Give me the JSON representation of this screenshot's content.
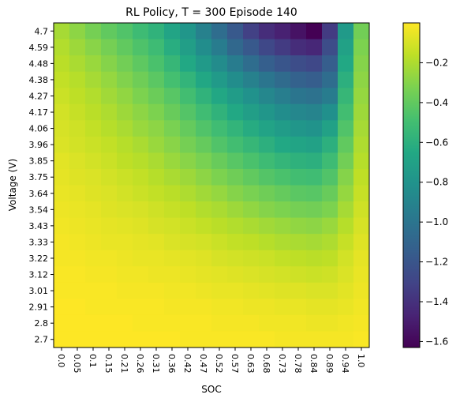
{
  "chart_data": {
    "type": "heatmap",
    "title": "RL Policy, T = 300 Episode 140",
    "xlabel": "SOC",
    "ylabel": "Voltage (V)",
    "x_ticks": [
      "0.0",
      "0.05",
      "0.1",
      "0.15",
      "0.21",
      "0.26",
      "0.31",
      "0.36",
      "0.42",
      "0.47",
      "0.52",
      "0.57",
      "0.63",
      "0.68",
      "0.73",
      "0.78",
      "0.84",
      "0.89",
      "0.94",
      "1.0"
    ],
    "y_ticks": [
      "4.7",
      "4.59",
      "4.48",
      "4.38",
      "4.27",
      "4.17",
      "4.06",
      "3.96",
      "3.85",
      "3.75",
      "3.64",
      "3.54",
      "3.43",
      "3.33",
      "3.22",
      "3.12",
      "3.01",
      "2.91",
      "2.8",
      "2.7"
    ],
    "colorbar": {
      "colormap": "viridis",
      "min": -1.63,
      "max": 0.0,
      "ticks": [
        -1.6,
        -1.4,
        -1.2,
        -1.0,
        -0.8,
        -0.6,
        -0.4,
        -0.2
      ],
      "tick_labels": [
        "−1.6",
        "−1.4",
        "−1.2",
        "−1.0",
        "−0.8",
        "−0.6",
        "−0.4",
        "−0.2"
      ]
    },
    "values": [
      [
        -0.22,
        -0.28,
        -0.34,
        -0.4,
        -0.45,
        -0.52,
        -0.58,
        -0.68,
        -0.78,
        -0.92,
        -1.05,
        -1.18,
        -1.32,
        -1.42,
        -1.48,
        -1.55,
        -1.63,
        -1.35,
        -0.75,
        -0.35
      ],
      [
        -0.19,
        -0.24,
        -0.29,
        -0.34,
        -0.4,
        -0.46,
        -0.52,
        -0.62,
        -0.72,
        -0.84,
        -0.95,
        -1.08,
        -1.18,
        -1.28,
        -1.35,
        -1.42,
        -1.45,
        -1.25,
        -0.7,
        -0.32
      ],
      [
        -0.17,
        -0.21,
        -0.25,
        -0.3,
        -0.35,
        -0.41,
        -0.47,
        -0.55,
        -0.65,
        -0.75,
        -0.85,
        -0.95,
        -1.05,
        -1.14,
        -1.2,
        -1.25,
        -1.28,
        -1.15,
        -0.65,
        -0.3
      ],
      [
        -0.15,
        -0.18,
        -0.22,
        -0.26,
        -0.31,
        -0.36,
        -0.42,
        -0.49,
        -0.57,
        -0.66,
        -0.75,
        -0.84,
        -0.92,
        -1.0,
        -1.06,
        -1.12,
        -1.15,
        -1.05,
        -0.6,
        -0.28
      ],
      [
        -0.13,
        -0.16,
        -0.19,
        -0.23,
        -0.27,
        -0.32,
        -0.37,
        -0.43,
        -0.5,
        -0.58,
        -0.66,
        -0.74,
        -0.81,
        -0.88,
        -0.94,
        -1.0,
        -1.02,
        -0.95,
        -0.55,
        -0.26
      ],
      [
        -0.11,
        -0.14,
        -0.17,
        -0.2,
        -0.24,
        -0.28,
        -0.32,
        -0.38,
        -0.44,
        -0.51,
        -0.58,
        -0.65,
        -0.72,
        -0.78,
        -0.84,
        -0.88,
        -0.9,
        -0.82,
        -0.5,
        -0.24
      ],
      [
        -0.1,
        -0.12,
        -0.15,
        -0.18,
        -0.21,
        -0.25,
        -0.28,
        -0.33,
        -0.39,
        -0.45,
        -0.51,
        -0.57,
        -0.63,
        -0.69,
        -0.74,
        -0.78,
        -0.8,
        -0.7,
        -0.45,
        -0.22
      ],
      [
        -0.09,
        -0.11,
        -0.13,
        -0.15,
        -0.18,
        -0.21,
        -0.25,
        -0.29,
        -0.34,
        -0.39,
        -0.45,
        -0.5,
        -0.55,
        -0.6,
        -0.65,
        -0.68,
        -0.7,
        -0.6,
        -0.4,
        -0.2
      ],
      [
        -0.07,
        -0.09,
        -0.11,
        -0.13,
        -0.16,
        -0.18,
        -0.21,
        -0.25,
        -0.29,
        -0.33,
        -0.38,
        -0.43,
        -0.47,
        -0.52,
        -0.56,
        -0.59,
        -0.6,
        -0.52,
        -0.35,
        -0.18
      ],
      [
        -0.06,
        -0.08,
        -0.09,
        -0.11,
        -0.13,
        -0.15,
        -0.18,
        -0.21,
        -0.24,
        -0.28,
        -0.32,
        -0.36,
        -0.4,
        -0.44,
        -0.47,
        -0.5,
        -0.51,
        -0.45,
        -0.3,
        -0.16
      ],
      [
        -0.05,
        -0.06,
        -0.08,
        -0.09,
        -0.11,
        -0.13,
        -0.15,
        -0.17,
        -0.2,
        -0.23,
        -0.26,
        -0.3,
        -0.33,
        -0.36,
        -0.39,
        -0.42,
        -0.43,
        -0.38,
        -0.26,
        -0.14
      ],
      [
        -0.04,
        -0.05,
        -0.06,
        -0.08,
        -0.09,
        -0.1,
        -0.12,
        -0.14,
        -0.16,
        -0.19,
        -0.21,
        -0.24,
        -0.27,
        -0.3,
        -0.32,
        -0.34,
        -0.35,
        -0.32,
        -0.22,
        -0.12
      ],
      [
        -0.03,
        -0.04,
        -0.05,
        -0.06,
        -0.07,
        -0.08,
        -0.1,
        -0.11,
        -0.13,
        -0.15,
        -0.17,
        -0.19,
        -0.21,
        -0.23,
        -0.25,
        -0.27,
        -0.28,
        -0.25,
        -0.18,
        -0.1
      ],
      [
        -0.02,
        -0.03,
        -0.04,
        -0.05,
        -0.05,
        -0.06,
        -0.07,
        -0.09,
        -0.1,
        -0.11,
        -0.13,
        -0.15,
        -0.16,
        -0.18,
        -0.2,
        -0.21,
        -0.22,
        -0.2,
        -0.14,
        -0.08
      ],
      [
        -0.02,
        -0.02,
        -0.03,
        -0.03,
        -0.04,
        -0.05,
        -0.05,
        -0.06,
        -0.07,
        -0.08,
        -0.1,
        -0.11,
        -0.12,
        -0.13,
        -0.15,
        -0.16,
        -0.17,
        -0.16,
        -0.11,
        -0.06
      ],
      [
        -0.01,
        -0.01,
        -0.02,
        -0.02,
        -0.03,
        -0.03,
        -0.04,
        -0.04,
        -0.05,
        -0.06,
        -0.07,
        -0.08,
        -0.09,
        -0.1,
        -0.11,
        -0.12,
        -0.13,
        -0.12,
        -0.09,
        -0.05
      ],
      [
        -0.01,
        -0.01,
        -0.01,
        -0.01,
        -0.02,
        -0.02,
        -0.02,
        -0.03,
        -0.03,
        -0.04,
        -0.05,
        -0.05,
        -0.06,
        -0.07,
        -0.08,
        -0.08,
        -0.09,
        -0.09,
        -0.07,
        -0.04
      ],
      [
        0.0,
        0.0,
        -0.01,
        -0.01,
        -0.01,
        -0.01,
        -0.01,
        -0.02,
        -0.02,
        -0.02,
        -0.03,
        -0.03,
        -0.04,
        -0.04,
        -0.05,
        -0.05,
        -0.06,
        -0.06,
        -0.05,
        -0.03
      ],
      [
        0.0,
        0.0,
        0.0,
        0.0,
        0.0,
        -0.01,
        -0.01,
        -0.01,
        -0.01,
        -0.01,
        -0.02,
        -0.02,
        -0.02,
        -0.03,
        -0.03,
        -0.03,
        -0.04,
        -0.04,
        -0.03,
        -0.02
      ],
      [
        0.0,
        0.0,
        0.0,
        0.0,
        0.0,
        0.0,
        0.0,
        0.0,
        -0.01,
        -0.01,
        -0.01,
        -0.01,
        -0.01,
        -0.01,
        -0.02,
        -0.02,
        -0.02,
        -0.02,
        -0.02,
        -0.01
      ]
    ]
  }
}
